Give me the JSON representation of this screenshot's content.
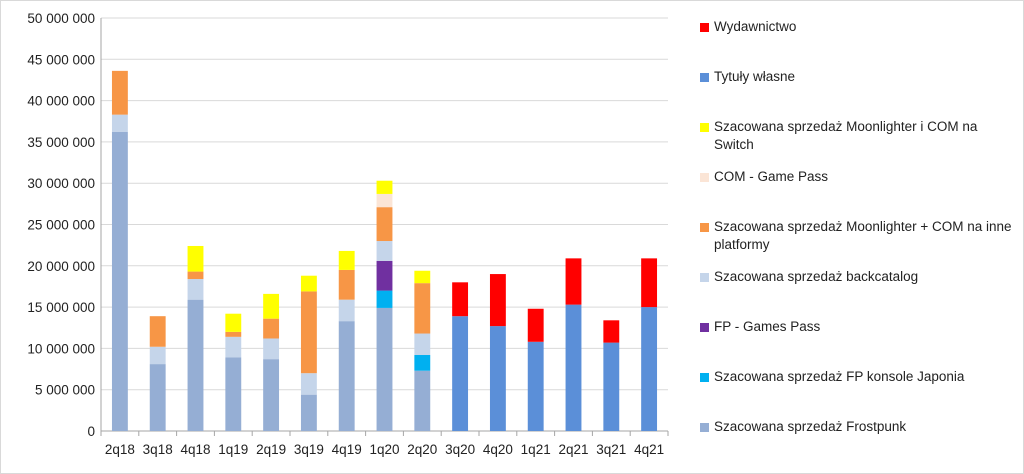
{
  "chart_data": {
    "type": "bar",
    "stacked": true,
    "title": "",
    "xlabel": "",
    "ylabel": "",
    "ylim": [
      0,
      50000000
    ],
    "yticks": [
      0,
      5000000,
      10000000,
      15000000,
      20000000,
      25000000,
      30000000,
      35000000,
      40000000,
      45000000,
      50000000
    ],
    "ytick_labels": [
      "0",
      "5 000 000",
      "10 000 000",
      "15 000 000",
      "20 000 000",
      "25 000 000",
      "30 000 000",
      "35 000 000",
      "40 000 000",
      "45 000 000",
      "50 000 000"
    ],
    "grid": true,
    "legend_position": "right",
    "categories": [
      "2q18",
      "3q18",
      "4q18",
      "1q19",
      "2q19",
      "3q19",
      "4q19",
      "1q20",
      "2q20",
      "3q20",
      "4q20",
      "1q21",
      "2q21",
      "3q21",
      "4q21"
    ],
    "series": [
      {
        "name": "Szacowana sprzedaż Frostpunk",
        "color": "#95aed4",
        "values": [
          36200000,
          8100000,
          15900000,
          8900000,
          8700000,
          4400000,
          13300000,
          14900000,
          7300000,
          0,
          0,
          0,
          0,
          0,
          0
        ]
      },
      {
        "name": "Szacowana sprzedaż FP konsole Japonia",
        "color": "#00b0f0",
        "values": [
          0,
          0,
          0,
          0,
          0,
          0,
          0,
          2100000,
          1900000,
          0,
          0,
          0,
          0,
          0,
          0
        ]
      },
      {
        "name": "FP - Games Pass",
        "color": "#7030a0",
        "values": [
          0,
          0,
          0,
          0,
          0,
          0,
          0,
          3600000,
          0,
          0,
          0,
          0,
          0,
          0,
          0
        ]
      },
      {
        "name": "Szacowana sprzedaż backcatalog",
        "color": "#c5d5ea",
        "values": [
          2100000,
          2100000,
          2500000,
          2500000,
          2500000,
          2600000,
          2600000,
          2400000,
          2600000,
          0,
          0,
          0,
          0,
          0,
          0
        ]
      },
      {
        "name": "Szacowana sprzedaż Moonlighter + COM na inne platformy",
        "color": "#f79646",
        "values": [
          5300000,
          3700000,
          900000,
          600000,
          2400000,
          9900000,
          3600000,
          4100000,
          6100000,
          0,
          0,
          0,
          0,
          0,
          0
        ]
      },
      {
        "name": "COM - Game Pass",
        "color": "#fbe5d6",
        "values": [
          0,
          0,
          0,
          0,
          0,
          0,
          0,
          1600000,
          0,
          0,
          0,
          0,
          0,
          0,
          0
        ]
      },
      {
        "name": "Szacowana sprzedaż Moonlighter i COM na Switch",
        "color": "#ffff00",
        "values": [
          0,
          0,
          3100000,
          2200000,
          3000000,
          1900000,
          2300000,
          1600000,
          1500000,
          0,
          0,
          0,
          0,
          0,
          0
        ]
      },
      {
        "name": "Tytuły własne",
        "color": "#5b8fd8",
        "values": [
          0,
          0,
          0,
          0,
          0,
          0,
          0,
          0,
          0,
          13900000,
          12700000,
          10800000,
          15300000,
          10700000,
          15000000
        ]
      },
      {
        "name": "Wydawnictwo",
        "color": "#ff0000",
        "values": [
          0,
          0,
          0,
          0,
          0,
          0,
          0,
          0,
          0,
          4100000,
          6300000,
          4000000,
          5600000,
          2700000,
          5900000
        ]
      }
    ],
    "legend_order": [
      "Wydawnictwo",
      "Tytuły własne",
      "Szacowana sprzedaż Moonlighter i COM na Switch",
      "COM - Game Pass",
      "Szacowana sprzedaż Moonlighter + COM na inne platformy",
      "Szacowana sprzedaż backcatalog",
      "FP - Games Pass",
      "Szacowana sprzedaż FP konsole Japonia",
      "Szacowana sprzedaż Frostpunk"
    ]
  },
  "colors": {
    "gridline": "#d9d9d9",
    "axis": "#a6a6a6",
    "text": "#222222"
  }
}
